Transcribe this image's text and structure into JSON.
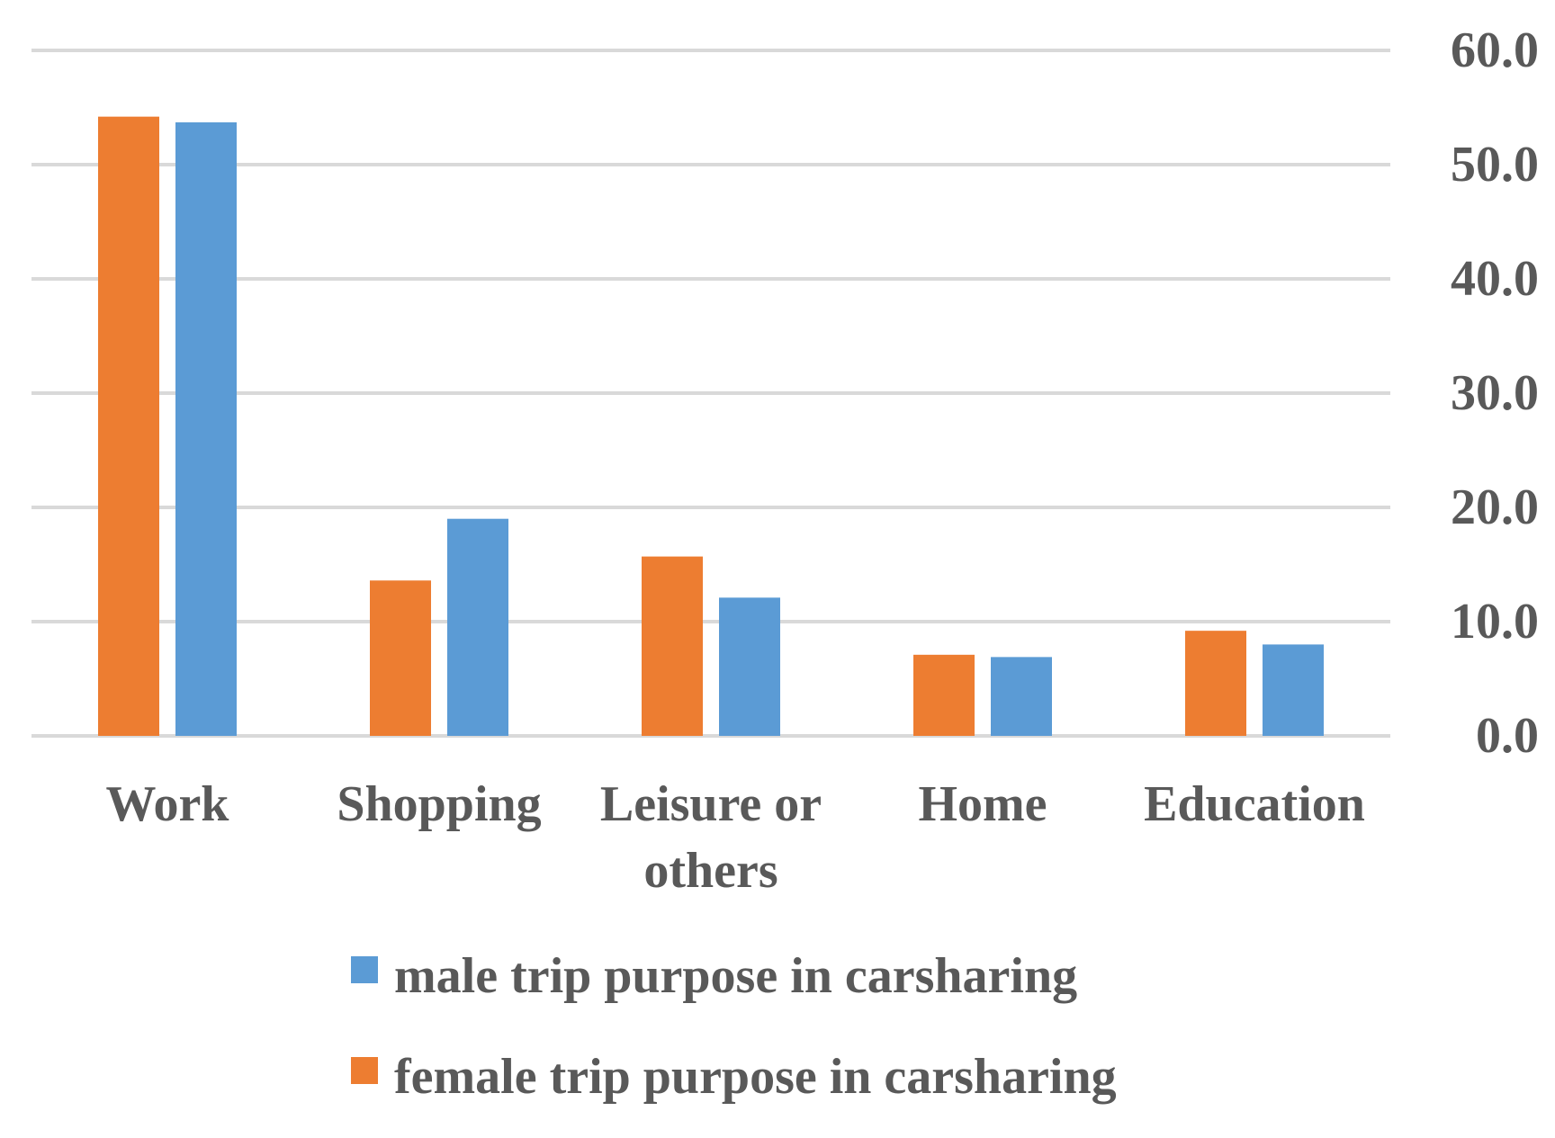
{
  "chart_data": {
    "type": "bar",
    "categories": [
      "Work",
      "Shopping",
      "Leisure or others",
      "Home",
      "Education"
    ],
    "category_lines": [
      [
        "Work"
      ],
      [
        "Shopping"
      ],
      [
        "Leisure or",
        "others"
      ],
      [
        "Home"
      ],
      [
        "Education"
      ]
    ],
    "series": [
      {
        "name": "female trip purpose in carsharing",
        "color": "#ED7D31",
        "values": [
          54.2,
          13.6,
          15.7,
          7.1,
          9.2
        ]
      },
      {
        "name": "male trip purpose in carsharing",
        "color": "#5B9BD5",
        "values": [
          53.7,
          19.0,
          12.1,
          6.9,
          8.0
        ]
      }
    ],
    "legend_order": [
      1,
      0
    ],
    "y_ticks": [
      "0.0",
      "10.0",
      "20.0",
      "30.0",
      "40.0",
      "50.0",
      "60.0"
    ],
    "ylim": [
      0,
      60
    ],
    "y_axis_side": "right",
    "grid": true,
    "grid_color": "#D9D9D9",
    "text_color": "#595959",
    "legend_position": "bottom",
    "title": "",
    "xlabel": "",
    "ylabel": ""
  }
}
